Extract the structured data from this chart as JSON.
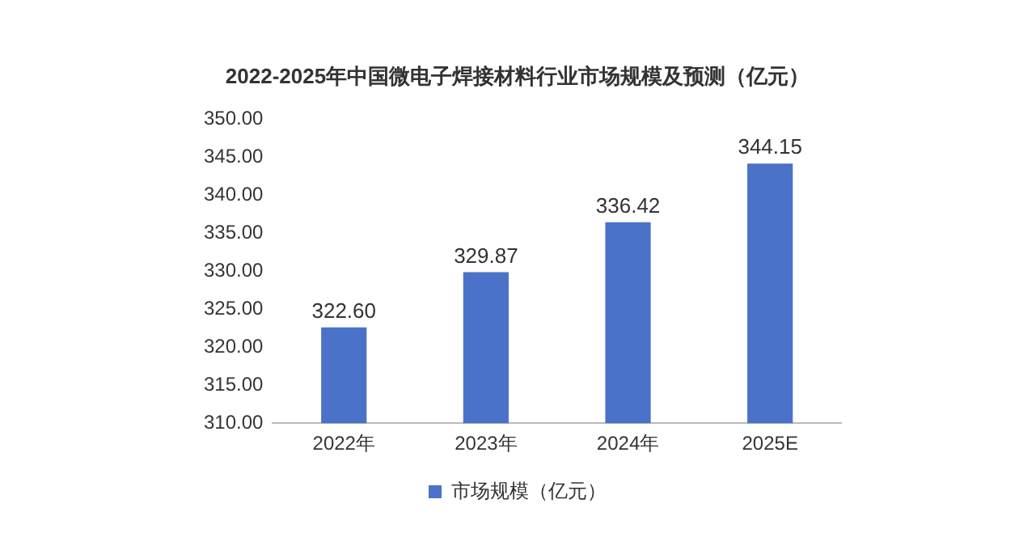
{
  "chart_data": {
    "type": "bar",
    "title": "2022-2025年中国微电子焊接材料行业市场规模及预测（亿元）",
    "categories": [
      "2022年",
      "2023年",
      "2024年",
      "2025E"
    ],
    "series": [
      {
        "name": "市场规模（亿元）",
        "color": "#4a72c8",
        "values": [
          322.6,
          329.87,
          336.42,
          344.15
        ],
        "value_labels": [
          "322.60",
          "329.87",
          "336.42",
          "344.15"
        ]
      }
    ],
    "ylim": [
      310,
      350
    ],
    "yticks": [
      {
        "value": 310,
        "label": "310.00"
      },
      {
        "value": 315,
        "label": "315.00"
      },
      {
        "value": 320,
        "label": "320.00"
      },
      {
        "value": 325,
        "label": "325.00"
      },
      {
        "value": 330,
        "label": "330.00"
      },
      {
        "value": 335,
        "label": "335.00"
      },
      {
        "value": 340,
        "label": "340.00"
      },
      {
        "value": 345,
        "label": "345.00"
      },
      {
        "value": 350,
        "label": "350.00"
      }
    ],
    "grid": false,
    "legend": "bottom"
  }
}
